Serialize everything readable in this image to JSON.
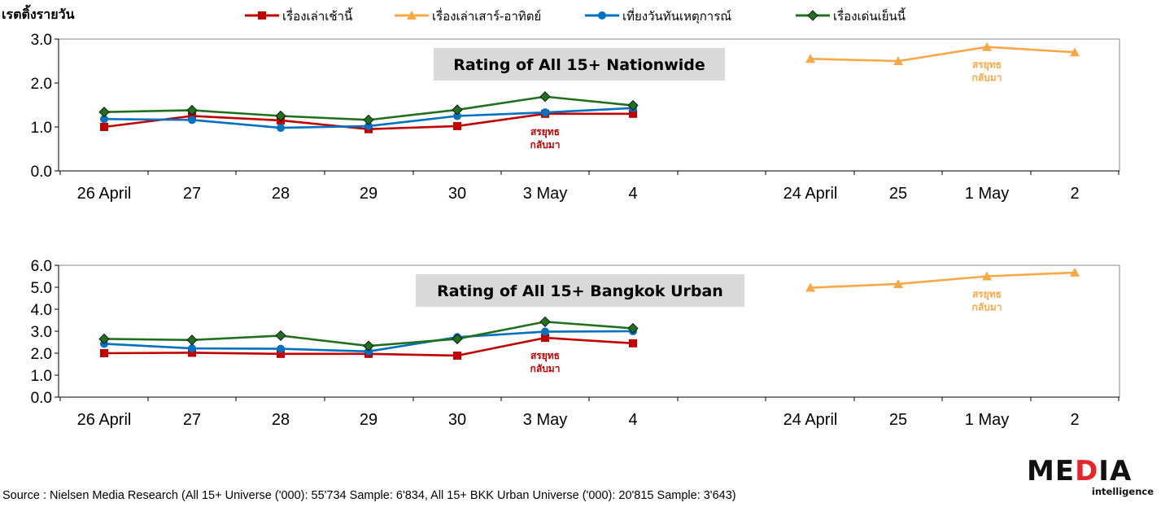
{
  "heading": "เรตติ้งรายวัน",
  "colors": {
    "series_1": "#c00000",
    "series_2": "#f9a848",
    "series_3": "#0070c0",
    "series_4": "#207020",
    "title_bg": "#d9d9d9"
  },
  "legend": [
    {
      "label": "เรื่องเล่าเช้านี้",
      "marker": "square"
    },
    {
      "label": "เรื่องเล่าเสาร์-อาทิตย์",
      "marker": "triangle"
    },
    {
      "label": "เที่ยงวันทันเหตุการณ์",
      "marker": "circle"
    },
    {
      "label": "เรื่องเด่นเย็นนี้",
      "marker": "diamond"
    }
  ],
  "chart_data": [
    {
      "type": "line",
      "title": "Rating of All 15+ Nationwide",
      "ylim": [
        0,
        3
      ],
      "yticks": [
        "0.0",
        "1.0",
        "2.0",
        "3.0"
      ],
      "categories": [
        "26 April",
        "27",
        "28",
        "29",
        "30",
        "3 May",
        "4",
        "",
        "24 April",
        "25",
        "1 May",
        "2"
      ],
      "grid": false,
      "series": [
        {
          "name": "เรื่องเล่าเช้านี้",
          "values": [
            1.0,
            1.25,
            1.15,
            0.95,
            1.02,
            1.3,
            1.3,
            null,
            null,
            null,
            null,
            null
          ]
        },
        {
          "name": "เรื่องเล่าเสาร์-อาทิตย์",
          "values": [
            null,
            null,
            null,
            null,
            null,
            null,
            null,
            null,
            2.55,
            2.5,
            2.82,
            2.7
          ]
        },
        {
          "name": "เที่ยงวันทันเหตุการณ์",
          "values": [
            1.18,
            1.16,
            0.98,
            1.02,
            1.25,
            1.33,
            1.43,
            null,
            null,
            null,
            null,
            null
          ]
        },
        {
          "name": "เรื่องเด่นเย็นนี้",
          "values": [
            1.34,
            1.38,
            1.25,
            1.16,
            1.39,
            1.69,
            1.49,
            null,
            null,
            null,
            null,
            null
          ]
        }
      ],
      "annotations": [
        {
          "text": [
            "สรยุทธ",
            "กลับมา"
          ],
          "series": 0,
          "category": "3 May"
        },
        {
          "text": [
            "สรยุทธ",
            "กลับมา"
          ],
          "series": 1,
          "category": "1 May"
        }
      ]
    },
    {
      "type": "line",
      "title": "Rating of All 15+ Bangkok Urban",
      "ylim": [
        0,
        6
      ],
      "yticks": [
        "0.0",
        "1.0",
        "2.0",
        "3.0",
        "4.0",
        "5.0",
        "6.0"
      ],
      "categories": [
        "26 April",
        "27",
        "28",
        "29",
        "30",
        "3 May",
        "4",
        "",
        "24 April",
        "25",
        "1 May",
        "2"
      ],
      "grid": false,
      "series": [
        {
          "name": "เรื่องเล่าเช้านี้",
          "values": [
            2.0,
            2.02,
            1.97,
            1.97,
            1.89,
            2.7,
            2.45,
            null,
            null,
            null,
            null,
            null
          ]
        },
        {
          "name": "เรื่องเล่าเสาร์-อาทิตย์",
          "values": [
            null,
            null,
            null,
            null,
            null,
            null,
            null,
            null,
            4.98,
            5.15,
            5.5,
            5.67
          ]
        },
        {
          "name": "เที่ยงวันทันเหตุการณ์",
          "values": [
            2.43,
            2.22,
            2.2,
            2.08,
            2.73,
            2.98,
            3.0,
            null,
            null,
            null,
            null,
            null
          ]
        },
        {
          "name": "เรื่องเด่นเย็นนี้",
          "values": [
            2.65,
            2.6,
            2.8,
            2.33,
            2.65,
            3.43,
            3.13,
            null,
            null,
            null,
            null,
            null
          ]
        }
      ],
      "annotations": [
        {
          "text": [
            "สรยุทธ",
            "กลับมา"
          ],
          "series": 0,
          "category": "3 May"
        },
        {
          "text": [
            "สรยุทธ",
            "กลับมา"
          ],
          "series": 1,
          "category": "1 May"
        }
      ]
    }
  ],
  "source": "Source : Nielsen Media Research (All 15+ Universe ('000): 55'734 Sample: 6'834, All 15+ BKK Urban Universe ('000): 20'815 Sample: 3'643)",
  "logo": {
    "line1_part1": "ME",
    "line1_part2": "D",
    "line1_part3": "IA",
    "line2": "intelligence"
  }
}
